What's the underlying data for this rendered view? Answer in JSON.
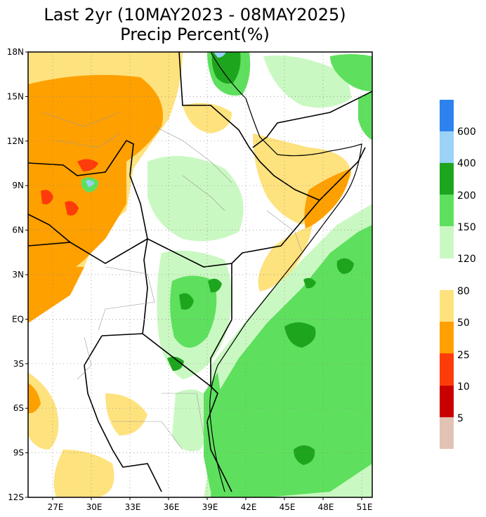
{
  "title_line1": "Last 2yr (10MAY2023 - 08MAY2025)",
  "title_line2": "Precip Percent(%)",
  "map": {
    "lat_labels": [
      "18N",
      "15N",
      "12N",
      "9N",
      "6N",
      "3N",
      "EQ",
      "3S",
      "6S",
      "9S",
      "12S"
    ],
    "lon_labels": [
      "27E",
      "30E",
      "33E",
      "36E",
      "39E",
      "42E",
      "45E",
      "48E",
      "51E"
    ]
  },
  "legend": {
    "wet": [
      {
        "label": "600",
        "color": "#2e82f0"
      },
      {
        "label": "400",
        "color": "#9ad2f8"
      },
      {
        "label": "200",
        "color": "#1ea51e"
      },
      {
        "label": "150",
        "color": "#5ee05e"
      },
      {
        "label": "120",
        "color": "#caf8c2"
      }
    ],
    "wet_top_color": "#2e82f0",
    "dry": [
      {
        "label": "80",
        "color": "#fee27e"
      },
      {
        "label": "50",
        "color": "#fea000"
      },
      {
        "label": "25",
        "color": "#fe3c0a"
      },
      {
        "label": "10",
        "color": "#c80000"
      },
      {
        "label": "5",
        "color": "#e2c2b4"
      }
    ]
  }
}
